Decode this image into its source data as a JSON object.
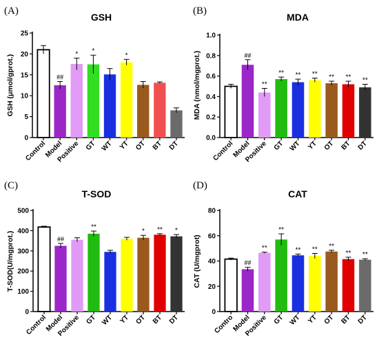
{
  "chart_data": [
    {
      "panel": "(A)",
      "type": "bar",
      "title": "GSH",
      "ylabel": "GSH (μmol/gprot.)",
      "ylim": [
        0,
        25
      ],
      "yticks": [
        0,
        5,
        10,
        15,
        20,
        25
      ],
      "categories": [
        "Control",
        "Model",
        "Positive",
        "GT",
        "WT",
        "YT",
        "OT",
        "BT",
        "DT"
      ],
      "values": [
        21.0,
        12.5,
        17.6,
        17.5,
        15.1,
        18.0,
        12.6,
        13.1,
        6.5
      ],
      "errors": [
        1.0,
        0.9,
        1.4,
        2.2,
        1.4,
        0.7,
        0.8,
        0.2,
        0.6
      ],
      "significance": [
        "",
        "##",
        "*",
        "*",
        "",
        "*",
        "",
        "",
        ""
      ],
      "colors": [
        "#ffffff",
        "#9b27c9",
        "#e19af5",
        "#33dd22",
        "#1a2fe0",
        "#ffff00",
        "#9b5a1d",
        "#f25050",
        "#6b6b6b"
      ]
    },
    {
      "panel": "(B)",
      "type": "bar",
      "title": "MDA",
      "ylabel": "MDA (nmol/mgprot.)",
      "ylim": [
        0,
        1.0
      ],
      "yticks": [
        "0.0",
        "0.2",
        "0.4",
        "0.6",
        "0.8",
        "1.0"
      ],
      "categories": [
        "Control",
        "Model",
        "Positive",
        "GT",
        "WT",
        "YT",
        "OT",
        "BT",
        "DT"
      ],
      "values": [
        0.5,
        0.71,
        0.44,
        0.57,
        0.54,
        0.56,
        0.53,
        0.52,
        0.49
      ],
      "errors": [
        0.02,
        0.05,
        0.04,
        0.02,
        0.03,
        0.02,
        0.02,
        0.03,
        0.03
      ],
      "significance": [
        "",
        "##",
        "**",
        "**",
        "**",
        "**",
        "**",
        "**",
        "**"
      ],
      "colors": [
        "#ffffff",
        "#9b27c9",
        "#e19af5",
        "#22bb11",
        "#1a2fe0",
        "#ffff00",
        "#9b5a1d",
        "#e00000",
        "#333333"
      ]
    },
    {
      "panel": "(C)",
      "type": "bar",
      "title": "T-SOD",
      "ylabel": "T-SOD(U/mgprot.)",
      "ylim": [
        0,
        500
      ],
      "yticks": [
        0,
        100,
        200,
        300,
        400,
        500
      ],
      "categories": [
        "Control",
        "Model",
        "Positive",
        "GT",
        "WT",
        "YT",
        "OT",
        "BT",
        "DT"
      ],
      "values": [
        418,
        325,
        355,
        385,
        295,
        360,
        365,
        380,
        372
      ],
      "errors": [
        4,
        12,
        10,
        13,
        8,
        7,
        12,
        5,
        9
      ],
      "significance": [
        "",
        "##",
        "",
        "**",
        "",
        "",
        "*",
        "**",
        "*"
      ],
      "colors": [
        "#ffffff",
        "#9b27c9",
        "#e19af5",
        "#22bb11",
        "#1a2fe0",
        "#ffff00",
        "#9b5a1d",
        "#e00000",
        "#333333"
      ]
    },
    {
      "panel": "(D)",
      "type": "bar",
      "title": "CAT",
      "ylabel": "CAT (U/mgprot)",
      "ylim": [
        0,
        80
      ],
      "yticks": [
        0,
        20,
        40,
        60,
        80
      ],
      "categories": [
        "Contro",
        "Model",
        "Positive",
        "GT",
        "WT",
        "YT",
        "OT",
        "BT",
        "DT"
      ],
      "values": [
        41.5,
        33.5,
        46.5,
        57.0,
        44.5,
        44.0,
        47.5,
        41.5,
        41.0
      ],
      "errors": [
        0.8,
        1.5,
        0.5,
        4.5,
        1.0,
        2.0,
        1.0,
        1.5,
        0.8
      ],
      "significance": [
        "",
        "##",
        "**",
        "**",
        "**",
        "**",
        "**",
        "**",
        "**"
      ],
      "colors": [
        "#ffffff",
        "#9b27c9",
        "#e19af5",
        "#22bb11",
        "#1a2fe0",
        "#ffff00",
        "#9b5a1d",
        "#e00000",
        "#6b6b6b"
      ]
    }
  ]
}
